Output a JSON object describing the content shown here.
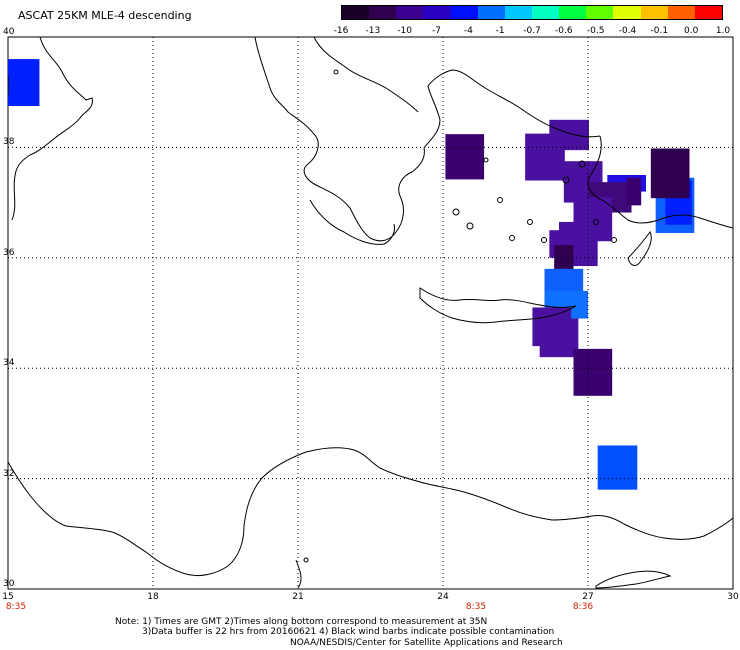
{
  "title": "ASCAT 25KM MLE-4 descending",
  "colorbar": {
    "tick_labels": [
      "-16",
      "-13",
      "-10",
      "-7",
      "-4",
      "-1",
      "-0.7",
      "-0.6",
      "-0.5",
      "-0.4",
      "-0.1",
      "0.0",
      "1.0"
    ],
    "colors": [
      "#1a0028",
      "#300050",
      "#3a0090",
      "#2800c0",
      "#0010ff",
      "#0070ff",
      "#00c8ff",
      "#00ffc0",
      "#00ff40",
      "#60ff00",
      "#e0ff00",
      "#ffc000",
      "#ff6000",
      "#ff0000"
    ]
  },
  "lat_labels": [
    "40",
    "38",
    "36",
    "34",
    "32",
    "30"
  ],
  "lon_labels": [
    "15",
    "18",
    "21",
    "24",
    "27",
    "30"
  ],
  "time_labels": [
    "8:35",
    "8:35",
    "8:36"
  ],
  "notes": [
    "Note: 1) Times are GMT 2)Times along bottom correspond to measurement at 35N",
    "3)Data buffer is 22 hrs from 20160621 4) Black wind barbs indicate possible contamination",
    "NOAA/NESDIS/Center for Satellite Applications and Research"
  ],
  "map_data": {
    "lat_range": [
      30,
      40
    ],
    "lon_range": [
      15,
      30
    ],
    "grid_lons": [
      18,
      21,
      24,
      27
    ],
    "grid_lats": [
      32,
      34,
      36,
      38
    ],
    "cells": [
      {
        "lat": 38.75,
        "lon": 15.0,
        "dlat": 0.85,
        "dlon": 0.65,
        "color": "#0020ff"
      },
      {
        "lat": 37.42,
        "lon": 24.05,
        "dlat": 0.82,
        "dlon": 0.8,
        "color": "#3a0070"
      },
      {
        "lat": 37.4,
        "lon": 25.7,
        "dlat": 0.85,
        "dlon": 0.82,
        "color": "#4a10a0"
      },
      {
        "lat": 37.95,
        "lon": 26.2,
        "dlat": 0.55,
        "dlon": 0.82,
        "color": "#4a10a0"
      },
      {
        "lat": 37.0,
        "lon": 26.5,
        "dlat": 0.75,
        "dlon": 0.8,
        "color": "#4a10a0"
      },
      {
        "lat": 37.2,
        "lon": 27.4,
        "dlat": 0.3,
        "dlon": 0.8,
        "color": "#2010e0"
      },
      {
        "lat": 36.82,
        "lon": 27.0,
        "dlat": 0.55,
        "dlon": 0.9,
        "color": "#40087a"
      },
      {
        "lat": 36.95,
        "lon": 27.8,
        "dlat": 0.5,
        "dlon": 0.3,
        "color": "#3a0070"
      },
      {
        "lat": 36.45,
        "lon": 28.4,
        "dlat": 1.0,
        "dlon": 0.8,
        "color": "#1060ff"
      },
      {
        "lat": 36.6,
        "lon": 28.6,
        "dlat": 0.8,
        "dlon": 0.55,
        "color": "#0020ff"
      },
      {
        "lat": 37.08,
        "lon": 28.3,
        "dlat": 0.9,
        "dlon": 0.8,
        "color": "#300050"
      },
      {
        "lat": 36.3,
        "lon": 26.7,
        "dlat": 0.8,
        "dlon": 0.8,
        "color": "#4a10a0"
      },
      {
        "lat": 36.0,
        "lon": 26.2,
        "dlat": 0.5,
        "dlon": 0.7,
        "color": "#4a10a0"
      },
      {
        "lat": 35.85,
        "lon": 26.4,
        "dlat": 0.8,
        "dlon": 0.8,
        "color": "#4a10a0"
      },
      {
        "lat": 35.58,
        "lon": 26.3,
        "dlat": 0.65,
        "dlon": 0.4,
        "color": "#300050"
      },
      {
        "lat": 35.0,
        "lon": 26.1,
        "dlat": 0.8,
        "dlon": 0.8,
        "color": "#1060ff"
      },
      {
        "lat": 34.9,
        "lon": 26.1,
        "dlat": 0.5,
        "dlon": 0.9,
        "color": "#1070ff"
      },
      {
        "lat": 34.4,
        "lon": 25.85,
        "dlat": 0.7,
        "dlon": 0.8,
        "color": "#4a10a0"
      },
      {
        "lat": 34.2,
        "lon": 26.0,
        "dlat": 0.7,
        "dlon": 0.8,
        "color": "#4a10a0"
      },
      {
        "lat": 33.5,
        "lon": 26.7,
        "dlat": 0.85,
        "dlon": 0.8,
        "color": "#3a0070"
      },
      {
        "lat": 31.8,
        "lon": 27.2,
        "dlat": 0.8,
        "dlon": 0.82,
        "color": "#0050ff"
      }
    ]
  }
}
